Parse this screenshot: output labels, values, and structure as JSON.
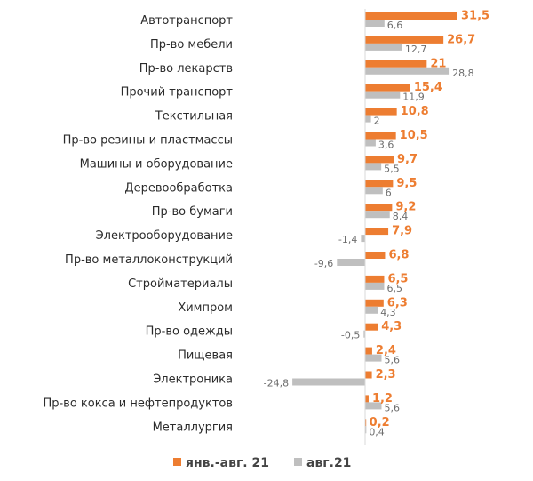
{
  "chart_data": {
    "type": "bar",
    "orientation": "horizontal",
    "categories": [
      "Автотранспорт",
      "Пр-во мебели",
      "Пр-во лекарств",
      "Прочий транспорт",
      "Текстильная",
      "Пр-во резины и пластмассы",
      "Машины и оборудование",
      "Деревообработка",
      "Пр-во бумаги",
      "Электрооборудование",
      "Пр-во металлоконструкций",
      "Стройматериалы",
      "Химпром",
      "Пр-во одежды",
      "Пищевая",
      "Электроника",
      "Пр-во кокса и нефтепродуктов",
      "Металлургия"
    ],
    "series": [
      {
        "name": "янв.-авг. 21",
        "color": "#ed7d31",
        "values": [
          31.5,
          26.7,
          21,
          15.4,
          10.8,
          10.5,
          9.7,
          9.5,
          9.2,
          7.9,
          6.8,
          6.5,
          6.3,
          4.3,
          2.4,
          2.3,
          1.2,
          0.2
        ],
        "labels": [
          "31,5",
          "26,7",
          "21",
          "15,4",
          "10,8",
          "10,5",
          "9,7",
          "9,5",
          "9,2",
          "7,9",
          "6,8",
          "6,5",
          "6,3",
          "4,3",
          "2,4",
          "2,3",
          "1,2",
          "0,2"
        ]
      },
      {
        "name": "авг.21",
        "color": "#bfbfbf",
        "values": [
          6.6,
          12.7,
          28.8,
          11.9,
          2,
          3.6,
          5.5,
          6,
          8.4,
          -1.4,
          -9.6,
          6.5,
          4.3,
          -0.5,
          5.6,
          -24.8,
          5.6,
          0.4
        ],
        "labels": [
          "6,6",
          "12,7",
          "28,8",
          "11,9",
          "2",
          "3,6",
          "5,5",
          "6",
          "8,4",
          "-1,4",
          "-9,6",
          "6,5",
          "4,3",
          "-0,5",
          "5,6",
          "-24,8",
          "5,6",
          "0,4"
        ]
      }
    ],
    "legend_position": "bottom",
    "grid": false
  }
}
